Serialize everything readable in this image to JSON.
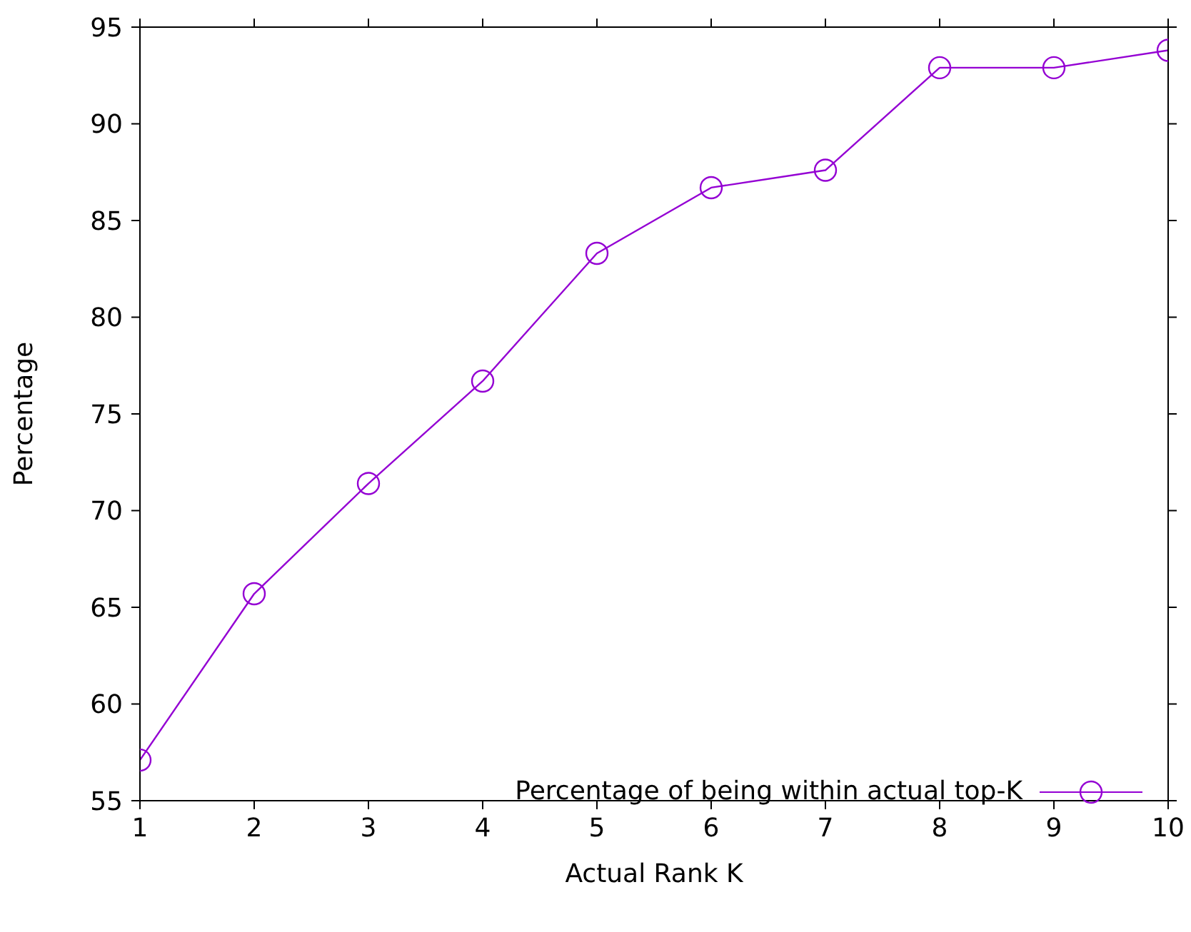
{
  "chart_data": {
    "type": "line",
    "xlabel": "Actual Rank K",
    "ylabel": "Percentage",
    "x": [
      1,
      2,
      3,
      4,
      5,
      6,
      7,
      8,
      9,
      10
    ],
    "series": [
      {
        "name": "Percentage of being within actual top-K",
        "color": "#9400d3",
        "values": [
          57.1,
          65.7,
          71.4,
          76.7,
          83.3,
          86.7,
          87.6,
          92.9,
          92.9,
          93.8
        ]
      }
    ],
    "xlim": [
      1,
      10
    ],
    "xticks": [
      1,
      2,
      3,
      4,
      5,
      6,
      7,
      8,
      9,
      10
    ],
    "ylim": [
      55,
      95
    ],
    "yticks": [
      55,
      60,
      65,
      70,
      75,
      80,
      85,
      90,
      95
    ],
    "marker": "circle",
    "line_style": "solid",
    "grid": false,
    "legend": "bottom right"
  }
}
